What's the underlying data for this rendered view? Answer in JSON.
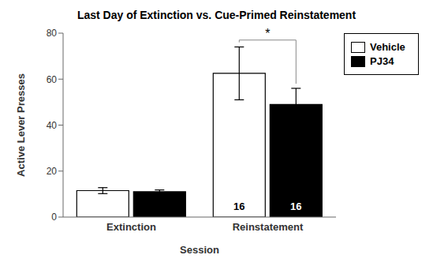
{
  "chart_data": {
    "type": "bar",
    "title": "Last Day of Extinction vs. Cue-Primed Reinstatement",
    "xlabel": "Session",
    "ylabel": "Active Lever Presses",
    "categories": [
      "Extinction",
      "Reinstatement"
    ],
    "series": [
      {
        "name": "Vehicle",
        "color": "#ffffff",
        "values": [
          11.5,
          62.5
        ],
        "errors": [
          1.3,
          11.5
        ]
      },
      {
        "name": "PJ34",
        "color": "#000000",
        "values": [
          11.0,
          49.0
        ],
        "errors": [
          0.8,
          7.0
        ]
      }
    ],
    "ylim": [
      0,
      80
    ],
    "yticks": [
      0,
      20,
      40,
      60,
      80
    ],
    "grid": false,
    "legend": "right",
    "annotations": [
      {
        "text": "16",
        "category": "Reinstatement",
        "series": "Vehicle",
        "y": 2.5
      },
      {
        "text": "16",
        "category": "Reinstatement",
        "series": "PJ34",
        "y": 2.5
      }
    ],
    "bracket": {
      "text": "*",
      "category": "Reinstatement",
      "y": 77,
      "from": {
        "series": "Vehicle",
        "y": 76
      },
      "to": {
        "series": "PJ34",
        "y": 58
      }
    }
  }
}
